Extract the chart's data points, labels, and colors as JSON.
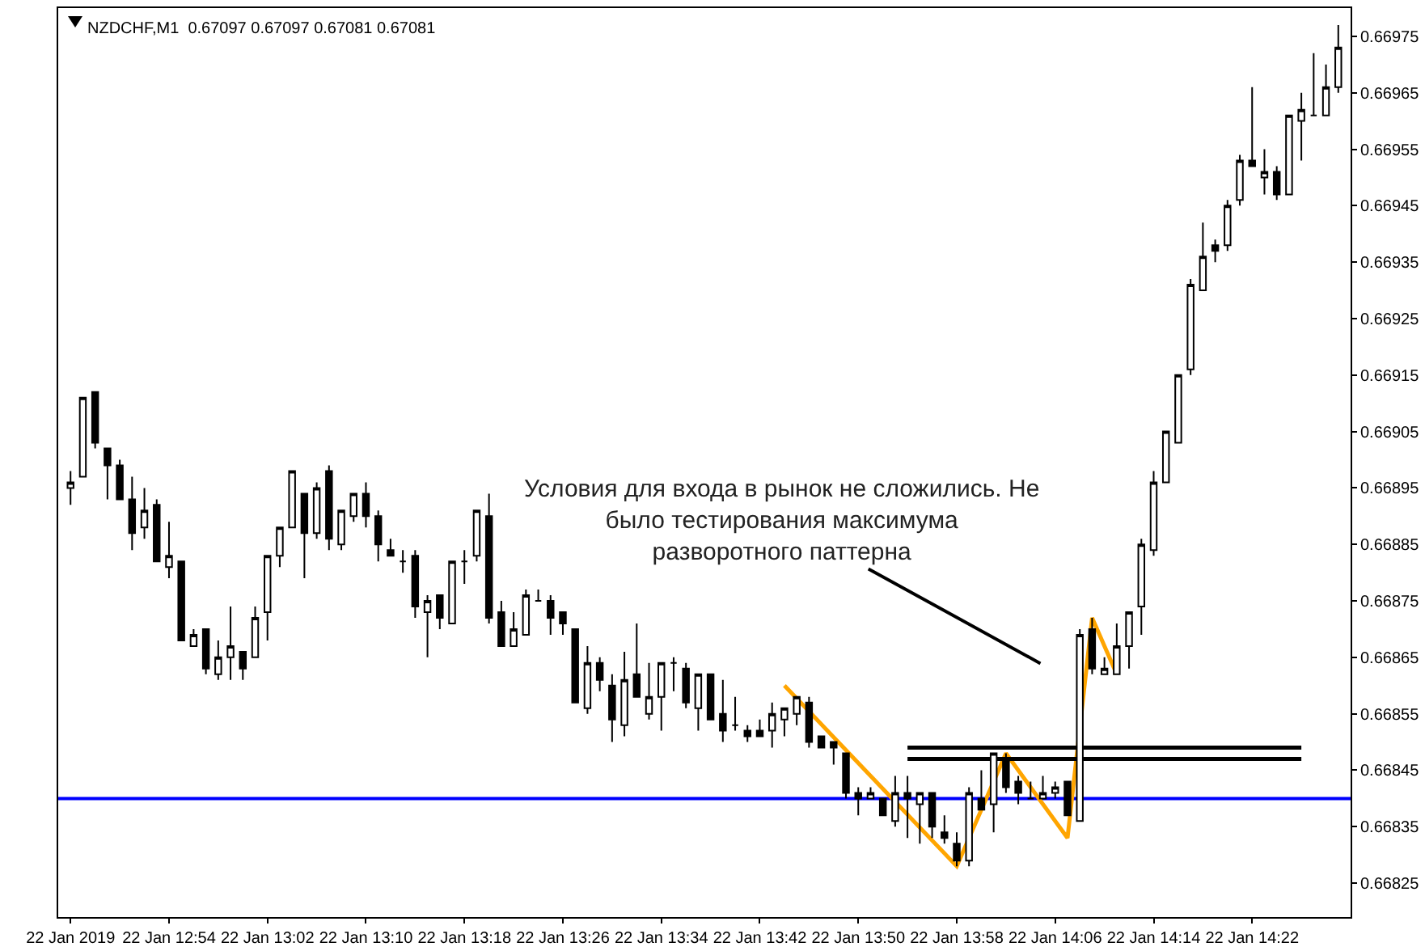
{
  "chart_data": {
    "type": "candlestick",
    "title": "NZDCHF,M1  0.67097 0.67097 0.67081 0.67081",
    "x": [
      "2019-01-22T12:46",
      "2019-01-22T12:47",
      "2019-01-22T12:48",
      "2019-01-22T12:49",
      "2019-01-22T12:50",
      "2019-01-22T12:51",
      "2019-01-22T12:52",
      "2019-01-22T12:53",
      "2019-01-22T12:54",
      "2019-01-22T12:55",
      "2019-01-22T12:56",
      "2019-01-22T12:57",
      "2019-01-22T12:58",
      "2019-01-22T12:59",
      "2019-01-22T13:00",
      "2019-01-22T13:01",
      "2019-01-22T13:02",
      "2019-01-22T13:03",
      "2019-01-22T13:04",
      "2019-01-22T13:05",
      "2019-01-22T13:06",
      "2019-01-22T13:07",
      "2019-01-22T13:08",
      "2019-01-22T13:09",
      "2019-01-22T13:10",
      "2019-01-22T13:11",
      "2019-01-22T13:12",
      "2019-01-22T13:13",
      "2019-01-22T13:14",
      "2019-01-22T13:15",
      "2019-01-22T13:16",
      "2019-01-22T13:17",
      "2019-01-22T13:18",
      "2019-01-22T13:19",
      "2019-01-22T13:20",
      "2019-01-22T13:21",
      "2019-01-22T13:22",
      "2019-01-22T13:23",
      "2019-01-22T13:24",
      "2019-01-22T13:25",
      "2019-01-22T13:26",
      "2019-01-22T13:27",
      "2019-01-22T13:28",
      "2019-01-22T13:29",
      "2019-01-22T13:30",
      "2019-01-22T13:31",
      "2019-01-22T13:32",
      "2019-01-22T13:33",
      "2019-01-22T13:34",
      "2019-01-22T13:35",
      "2019-01-22T13:36",
      "2019-01-22T13:37",
      "2019-01-22T13:38",
      "2019-01-22T13:39",
      "2019-01-22T13:40",
      "2019-01-22T13:41",
      "2019-01-22T13:42",
      "2019-01-22T13:43",
      "2019-01-22T13:44",
      "2019-01-22T13:45",
      "2019-01-22T13:46",
      "2019-01-22T13:47",
      "2019-01-22T13:48",
      "2019-01-22T13:49",
      "2019-01-22T13:50",
      "2019-01-22T13:51",
      "2019-01-22T13:52",
      "2019-01-22T13:53",
      "2019-01-22T13:54",
      "2019-01-22T13:55",
      "2019-01-22T13:56",
      "2019-01-22T13:57",
      "2019-01-22T13:58",
      "2019-01-22T13:59",
      "2019-01-22T14:00",
      "2019-01-22T14:01",
      "2019-01-22T14:02",
      "2019-01-22T14:03",
      "2019-01-22T14:04",
      "2019-01-22T14:05",
      "2019-01-22T14:06",
      "2019-01-22T14:07",
      "2019-01-22T14:08",
      "2019-01-22T14:09",
      "2019-01-22T14:10",
      "2019-01-22T14:11",
      "2019-01-22T14:12",
      "2019-01-22T14:13",
      "2019-01-22T14:14",
      "2019-01-22T14:15",
      "2019-01-22T14:16",
      "2019-01-22T14:17",
      "2019-01-22T14:18",
      "2019-01-22T14:19",
      "2019-01-22T14:20",
      "2019-01-22T14:21",
      "2019-01-22T14:22",
      "2019-01-22T14:23",
      "2019-01-22T14:24",
      "2019-01-22T14:25",
      "2019-01-22T14:26",
      "2019-01-22T14:27",
      "2019-01-22T14:28",
      "2019-01-22T14:29"
    ],
    "ohlc": [
      [
        0.66895,
        0.66898,
        0.66892,
        0.66896
      ],
      [
        0.66897,
        0.66911,
        0.66897,
        0.66911
      ],
      [
        0.66912,
        0.66912,
        0.66902,
        0.66903
      ],
      [
        0.66902,
        0.66902,
        0.66893,
        0.66899
      ],
      [
        0.66899,
        0.669,
        0.66893,
        0.66893
      ],
      [
        0.66893,
        0.66897,
        0.66884,
        0.66887
      ],
      [
        0.66888,
        0.66895,
        0.66886,
        0.66891
      ],
      [
        0.66892,
        0.66893,
        0.66882,
        0.66882
      ],
      [
        0.66881,
        0.66889,
        0.66879,
        0.66883
      ],
      [
        0.66882,
        0.66882,
        0.66868,
        0.66868
      ],
      [
        0.66867,
        0.6687,
        0.66867,
        0.66869
      ],
      [
        0.6687,
        0.6687,
        0.66862,
        0.66863
      ],
      [
        0.66862,
        0.66868,
        0.66861,
        0.66865
      ],
      [
        0.66865,
        0.66874,
        0.66861,
        0.66867
      ],
      [
        0.66866,
        0.66866,
        0.66861,
        0.66863
      ],
      [
        0.66865,
        0.66874,
        0.66865,
        0.66872
      ],
      [
        0.66873,
        0.66883,
        0.66868,
        0.66883
      ],
      [
        0.66883,
        0.66888,
        0.66881,
        0.66888
      ],
      [
        0.66888,
        0.66898,
        0.66888,
        0.66898
      ],
      [
        0.66894,
        0.66894,
        0.66879,
        0.66887
      ],
      [
        0.66887,
        0.66896,
        0.66886,
        0.66895
      ],
      [
        0.66898,
        0.66899,
        0.66884,
        0.66886
      ],
      [
        0.66885,
        0.66891,
        0.66884,
        0.66891
      ],
      [
        0.6689,
        0.66894,
        0.66889,
        0.66894
      ],
      [
        0.66894,
        0.66896,
        0.66888,
        0.6689
      ],
      [
        0.6689,
        0.66891,
        0.66882,
        0.66885
      ],
      [
        0.66884,
        0.66886,
        0.66883,
        0.66883
      ],
      [
        0.66882,
        0.66884,
        0.6688,
        0.66882
      ],
      [
        0.66883,
        0.66884,
        0.66872,
        0.66874
      ],
      [
        0.66873,
        0.66876,
        0.66865,
        0.66875
      ],
      [
        0.66876,
        0.66876,
        0.6687,
        0.66872
      ],
      [
        0.66871,
        0.66882,
        0.66871,
        0.66882
      ],
      [
        0.66882,
        0.66884,
        0.66878,
        0.66882
      ],
      [
        0.66883,
        0.66891,
        0.66882,
        0.66891
      ],
      [
        0.6689,
        0.66894,
        0.66871,
        0.66872
      ],
      [
        0.66873,
        0.66875,
        0.66867,
        0.66867
      ],
      [
        0.66867,
        0.66873,
        0.66867,
        0.6687
      ],
      [
        0.66869,
        0.66877,
        0.66869,
        0.66876
      ],
      [
        0.66875,
        0.66877,
        0.66875,
        0.66875
      ],
      [
        0.66875,
        0.66876,
        0.66869,
        0.66872
      ],
      [
        0.66873,
        0.66873,
        0.66869,
        0.66871
      ],
      [
        0.6687,
        0.6687,
        0.66857,
        0.66857
      ],
      [
        0.66856,
        0.66867,
        0.66855,
        0.66864
      ],
      [
        0.66864,
        0.66865,
        0.66859,
        0.66861
      ],
      [
        0.6686,
        0.66862,
        0.6685,
        0.66854
      ],
      [
        0.66853,
        0.66866,
        0.66851,
        0.66861
      ],
      [
        0.66862,
        0.66871,
        0.66858,
        0.66858
      ],
      [
        0.66855,
        0.66864,
        0.66854,
        0.66858
      ],
      [
        0.66858,
        0.66864,
        0.66852,
        0.66864
      ],
      [
        0.66864,
        0.66865,
        0.66859,
        0.66864
      ],
      [
        0.66863,
        0.66864,
        0.66856,
        0.66857
      ],
      [
        0.66856,
        0.66862,
        0.66852,
        0.66862
      ],
      [
        0.66862,
        0.66862,
        0.66854,
        0.66854
      ],
      [
        0.66855,
        0.66861,
        0.6685,
        0.66852
      ],
      [
        0.66853,
        0.66858,
        0.66852,
        0.66853
      ],
      [
        0.66852,
        0.66853,
        0.6685,
        0.66851
      ],
      [
        0.66852,
        0.66854,
        0.66851,
        0.66851
      ],
      [
        0.66852,
        0.66857,
        0.66849,
        0.66855
      ],
      [
        0.66854,
        0.66856,
        0.66851,
        0.66856
      ],
      [
        0.66855,
        0.66858,
        0.66853,
        0.66858
      ],
      [
        0.66857,
        0.66858,
        0.66849,
        0.6685
      ],
      [
        0.66851,
        0.66851,
        0.66849,
        0.66849
      ],
      [
        0.6685,
        0.6685,
        0.66846,
        0.66849
      ],
      [
        0.66848,
        0.66848,
        0.6684,
        0.66841
      ],
      [
        0.66841,
        0.66842,
        0.66837,
        0.6684
      ],
      [
        0.6684,
        0.66842,
        0.6684,
        0.66841
      ],
      [
        0.6684,
        0.6684,
        0.66837,
        0.66837
      ],
      [
        0.66836,
        0.66844,
        0.66835,
        0.66841
      ],
      [
        0.66841,
        0.66844,
        0.66833,
        0.6684
      ],
      [
        0.66839,
        0.66841,
        0.66832,
        0.66841
      ],
      [
        0.66841,
        0.66841,
        0.66833,
        0.66835
      ],
      [
        0.66834,
        0.66837,
        0.66832,
        0.66833
      ],
      [
        0.66832,
        0.66834,
        0.66828,
        0.66829
      ],
      [
        0.66829,
        0.66842,
        0.66828,
        0.66841
      ],
      [
        0.6684,
        0.66845,
        0.66838,
        0.66838
      ],
      [
        0.66839,
        0.66848,
        0.66834,
        0.66848
      ],
      [
        0.66847,
        0.66848,
        0.66841,
        0.66842
      ],
      [
        0.66843,
        0.66844,
        0.66839,
        0.66841
      ],
      [
        0.6684,
        0.66843,
        0.6684,
        0.6684
      ],
      [
        0.6684,
        0.66844,
        0.6684,
        0.66841
      ],
      [
        0.66841,
        0.66843,
        0.6684,
        0.66842
      ],
      [
        0.66843,
        0.66843,
        0.66837,
        0.66837
      ],
      [
        0.66836,
        0.6687,
        0.66836,
        0.66869
      ],
      [
        0.6687,
        0.66872,
        0.66862,
        0.66863
      ],
      [
        0.66862,
        0.66865,
        0.66862,
        0.66863
      ],
      [
        0.66862,
        0.66871,
        0.66862,
        0.66867
      ],
      [
        0.66867,
        0.66873,
        0.66863,
        0.66873
      ],
      [
        0.66874,
        0.66886,
        0.66869,
        0.66885
      ],
      [
        0.66884,
        0.66898,
        0.66883,
        0.66896
      ],
      [
        0.66896,
        0.66905,
        0.66896,
        0.66905
      ],
      [
        0.66903,
        0.66915,
        0.66903,
        0.66915
      ],
      [
        0.66916,
        0.66932,
        0.66915,
        0.66931
      ],
      [
        0.6693,
        0.66942,
        0.6693,
        0.66936
      ],
      [
        0.66938,
        0.66939,
        0.66935,
        0.66937
      ],
      [
        0.66938,
        0.66946,
        0.66937,
        0.66945
      ],
      [
        0.66946,
        0.66954,
        0.66945,
        0.66953
      ],
      [
        0.66953,
        0.66966,
        0.66952,
        0.66952
      ],
      [
        0.6695,
        0.66955,
        0.66947,
        0.66951
      ],
      [
        0.66951,
        0.66952,
        0.66946,
        0.66947
      ],
      [
        0.66947,
        0.66961,
        0.66947,
        0.66961
      ],
      [
        0.6696,
        0.66965,
        0.66953,
        0.66962
      ],
      [
        0.66961,
        0.66972,
        0.66961,
        0.66961
      ],
      [
        0.66961,
        0.6697,
        0.66961,
        0.66966
      ],
      [
        0.66966,
        0.66977,
        0.66965,
        0.66973
      ]
    ],
    "series": [
      {
        "type": "line",
        "color": "#ffa500",
        "x": [
          "2019-01-22T13:44",
          "2019-01-22T13:58",
          "2019-01-22T14:02",
          "2019-01-22T14:07",
          "2019-01-22T14:09",
          "2019-01-22T14:11"
        ],
        "values": [
          0.6686,
          0.66828,
          0.66848,
          0.66833,
          0.66872,
          0.66862
        ]
      },
      {
        "type": "line",
        "color": "#000000",
        "x": [
          "2019-01-22T13:54",
          "2019-01-22T14:26"
        ],
        "values": [
          0.66849,
          0.66849
        ]
      },
      {
        "type": "line",
        "color": "#000000",
        "x": [
          "2019-01-22T13:54",
          "2019-01-22T14:26"
        ],
        "values": [
          0.66847,
          0.66847
        ]
      }
    ],
    "ref_lines": [
      {
        "axis": "y",
        "value": 0.6684,
        "color": "#0000ff"
      }
    ],
    "annotations": [
      "Условия для входа в рынок не сложились. Не\nбыло тестирования максимума\nразворотного паттерна"
    ],
    "xlim": [
      "2019-01-22T12:45",
      "2019-01-22T14:30"
    ],
    "xticks": [
      {
        "value": "2019-01-22T12:46",
        "label": "22 Jan 2019"
      },
      {
        "value": "2019-01-22T12:54",
        "label": "22 Jan 12:54"
      },
      {
        "value": "2019-01-22T13:02",
        "label": "22 Jan 13:02"
      },
      {
        "value": "2019-01-22T13:10",
        "label": "22 Jan 13:10"
      },
      {
        "value": "2019-01-22T13:18",
        "label": "22 Jan 13:18"
      },
      {
        "value": "2019-01-22T13:26",
        "label": "22 Jan 13:26"
      },
      {
        "value": "2019-01-22T13:34",
        "label": "22 Jan 13:34"
      },
      {
        "value": "2019-01-22T13:42",
        "label": "22 Jan 13:42"
      },
      {
        "value": "2019-01-22T13:50",
        "label": "22 Jan 13:50"
      },
      {
        "value": "2019-01-22T13:58",
        "label": "22 Jan 13:58"
      },
      {
        "value": "2019-01-22T14:06",
        "label": "22 Jan 14:06"
      },
      {
        "value": "2019-01-22T14:14",
        "label": "22 Jan 14:14"
      },
      {
        "value": "2019-01-22T14:22",
        "label": "22 Jan 14:22"
      }
    ],
    "ylim": [
      0.66819,
      0.6698
    ],
    "yticks": [
      0.66825,
      0.66835,
      0.66845,
      0.66855,
      0.66865,
      0.66875,
      0.66885,
      0.66895,
      0.66905,
      0.66915,
      0.66925,
      0.66935,
      0.66945,
      0.66955,
      0.66965,
      0.66975
    ]
  }
}
